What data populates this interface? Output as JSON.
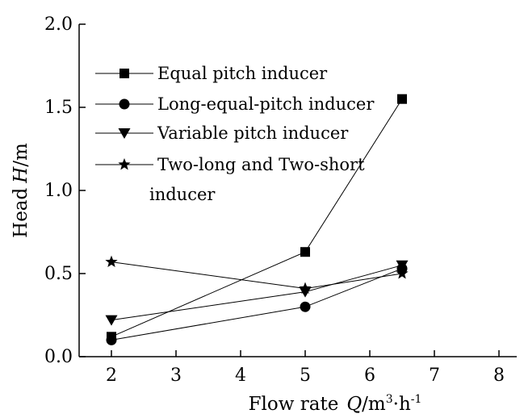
{
  "chart_data": {
    "type": "line",
    "x_axis": {
      "label": "Flow rate",
      "label_var": "Q",
      "label_unit_prefix": "/m",
      "label_unit_exp1": "3",
      "label_unit_mid": "·h",
      "label_unit_exp2": "-1",
      "range": [
        1.5,
        8.5
      ],
      "ticks": [
        "2",
        "3",
        "4",
        "5",
        "6",
        "7",
        "8"
      ]
    },
    "y_axis": {
      "label": "Head",
      "label_var": "H",
      "label_unit": "/m",
      "range": [
        0.0,
        2.0
      ],
      "ticks": [
        "0.0",
        "0.5",
        "1.0",
        "1.5",
        "2.0"
      ]
    },
    "grid": false,
    "legend_position": "top-left",
    "series": [
      {
        "name": "Equal pitch inducer",
        "marker": "square",
        "x": [
          2,
          5,
          6.5
        ],
        "y": [
          0.12,
          0.63,
          1.55
        ]
      },
      {
        "name": "Long-equal-pitch inducer",
        "marker": "circle",
        "x": [
          2,
          5,
          6.5
        ],
        "y": [
          0.1,
          0.3,
          0.53
        ]
      },
      {
        "name": "Variable pitch inducer",
        "marker": "triangle-down",
        "x": [
          2,
          5,
          6.5
        ],
        "y": [
          0.22,
          0.39,
          0.55
        ]
      },
      {
        "name": "Two-long and Two-short",
        "name_line2": "inducer",
        "marker": "star",
        "x": [
          2,
          5,
          6.5
        ],
        "y": [
          0.57,
          0.41,
          0.5
        ]
      }
    ]
  }
}
